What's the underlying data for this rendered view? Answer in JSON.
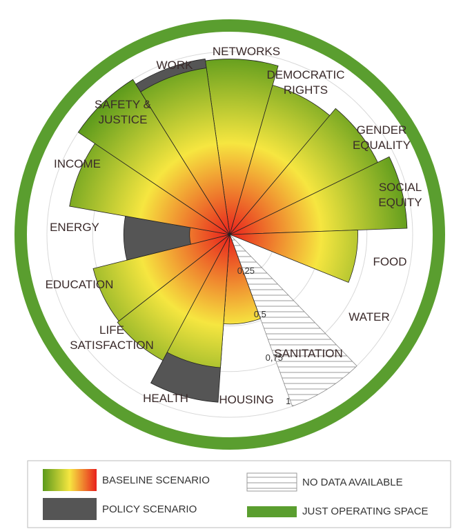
{
  "chart_data": {
    "type": "polar",
    "categories": [
      "NETWORKS",
      "DEMOCRATIC RIGHTS",
      "GENDER EQUALITY",
      "SOCIAL EQUITY",
      "FOOD",
      "WATER",
      "SANITATION",
      "HOUSING",
      "HEALTH",
      "LIFE SATISFACTION",
      "EDUCATION",
      "ENERGY",
      "INCOME",
      "SAFETY & JUSTICE",
      "WORK"
    ],
    "series": [
      {
        "name": "BASELINE SCENARIO",
        "colors": [
          "#e8201c",
          "#f6e640",
          "#5b9a1c"
        ],
        "values": [
          0.96,
          0.85,
          0.9,
          0.97,
          0.7,
          0,
          null,
          0.49,
          0.73,
          0.78,
          0.77,
          0.22,
          0.89,
          1.0,
          0.92
        ]
      },
      {
        "name": "POLICY SCENARIO",
        "color": "#555555",
        "values": [
          null,
          null,
          null,
          null,
          null,
          null,
          null,
          null,
          0.92,
          null,
          null,
          0.58,
          null,
          null,
          0.97
        ]
      }
    ],
    "no_data_label": "NO DATA AVAILABLE",
    "boundary_label": "JUST OPERATING SPACE",
    "boundary_color": "#5a9e2f",
    "rlim": [
      0,
      1
    ],
    "rticks": [
      {
        "value": 0.25,
        "label": "0,25"
      },
      {
        "value": 0.5,
        "label": "0,5"
      },
      {
        "value": 0.75,
        "label": "0,75"
      },
      1
    ],
    "grid": true
  }
}
